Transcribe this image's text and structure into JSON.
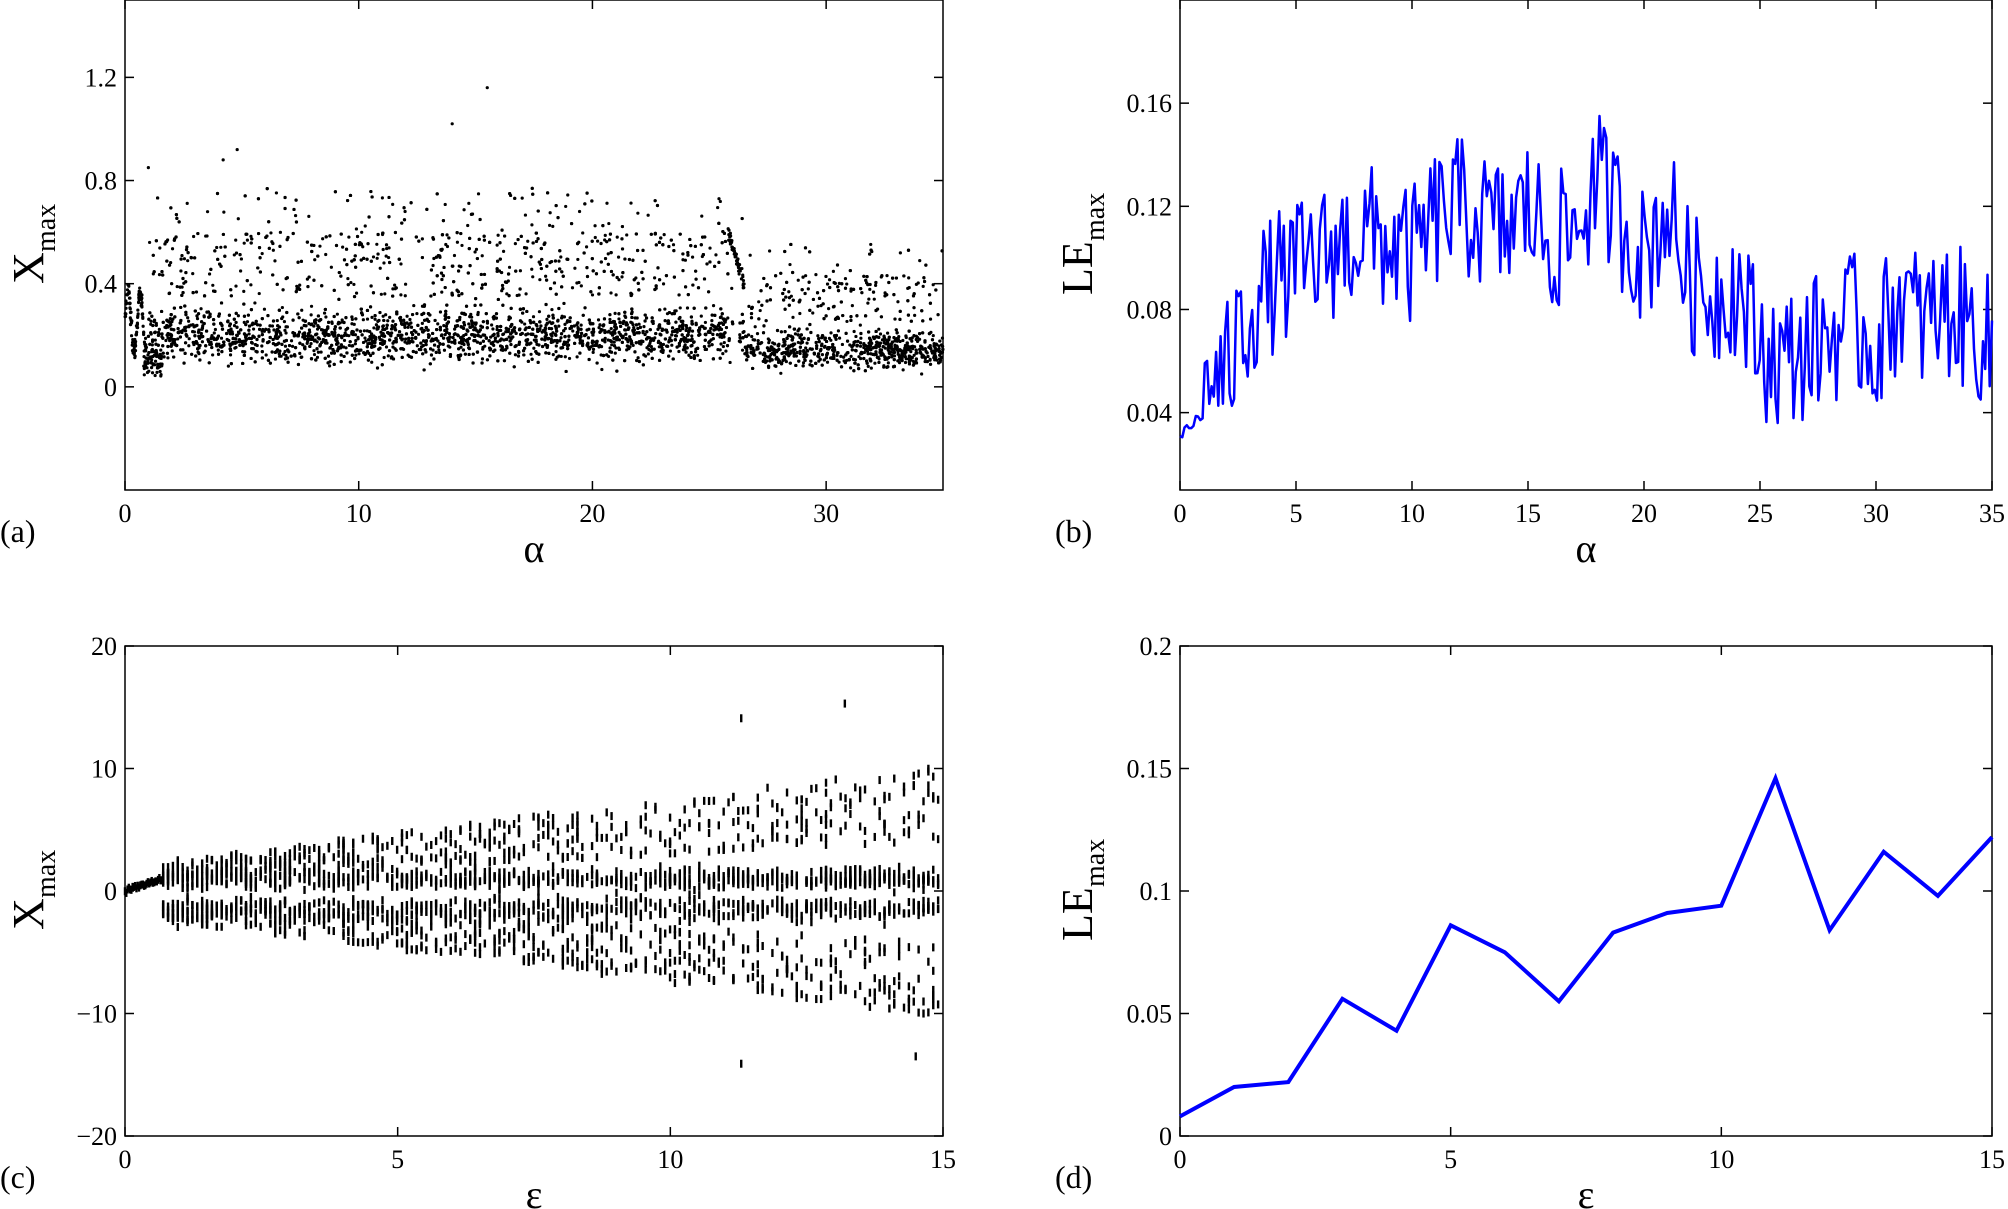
{
  "chart_data": [
    {
      "id": "a",
      "type": "scatter",
      "panel_label": "(a)",
      "xlabel": "α",
      "ylabel": "X",
      "ylabel_sub": "max",
      "xlim": [
        0,
        35
      ],
      "ylim": [
        -0.4,
        1.5
      ],
      "xticks": [
        "0",
        "10",
        "20",
        "30"
      ],
      "yticks": [
        "0",
        "0.4",
        "0.8",
        "1.2"
      ],
      "grid": false,
      "color": "#000000",
      "outliers": [
        {
          "x": 15.5,
          "y": 1.16
        },
        {
          "x": 14.0,
          "y": 1.02
        },
        {
          "x": 4.8,
          "y": 0.92
        },
        {
          "x": 4.2,
          "y": 0.88
        },
        {
          "x": 1.0,
          "y": 0.85
        }
      ]
    },
    {
      "id": "b",
      "type": "line",
      "panel_label": "(b)",
      "xlabel": "α",
      "ylabel": "LE",
      "ylabel_sub": "max",
      "xlim": [
        0,
        35
      ],
      "ylim": [
        0.01,
        0.2
      ],
      "xticks": [
        "0",
        "5",
        "10",
        "15",
        "20",
        "25",
        "30",
        "35"
      ],
      "yticks": [
        "0.04",
        "0.08",
        "0.12",
        "0.16"
      ],
      "grid": false,
      "color": "#0000ff",
      "x": [
        0,
        1,
        2,
        3,
        4,
        5,
        6,
        7,
        8,
        9,
        10,
        11,
        12,
        13,
        14,
        15,
        16,
        17,
        18,
        19,
        20,
        21,
        22,
        23,
        24,
        25,
        26,
        27,
        28,
        29,
        30,
        31,
        32,
        33,
        34,
        35
      ],
      "y": [
        0.032,
        0.05,
        0.055,
        0.08,
        0.09,
        0.095,
        0.1,
        0.105,
        0.11,
        0.105,
        0.1,
        0.115,
        0.12,
        0.115,
        0.11,
        0.12,
        0.105,
        0.11,
        0.13,
        0.115,
        0.1,
        0.12,
        0.09,
        0.085,
        0.09,
        0.065,
        0.06,
        0.065,
        0.07,
        0.075,
        0.065,
        0.085,
        0.075,
        0.08,
        0.075,
        0.065
      ]
    },
    {
      "id": "c",
      "type": "scatter",
      "panel_label": "(c)",
      "xlabel": "ε",
      "ylabel": "X",
      "ylabel_sub": "max",
      "xlim": [
        0,
        15
      ],
      "ylim": [
        -20,
        20
      ],
      "xticks": [
        "0",
        "5",
        "10",
        "15"
      ],
      "yticks": [
        "−20",
        "−10",
        "0",
        "10",
        "20"
      ],
      "grid": false,
      "color": "#000000"
    },
    {
      "id": "d",
      "type": "line",
      "panel_label": "(d)",
      "xlabel": "ε",
      "ylabel": "LE",
      "ylabel_sub": "max",
      "xlim": [
        0,
        15
      ],
      "ylim": [
        0,
        0.2
      ],
      "xticks": [
        "0",
        "5",
        "10",
        "15"
      ],
      "yticks": [
        "0",
        "0.05",
        "0.1",
        "0.15",
        "0.2"
      ],
      "grid": false,
      "color": "#0000ff",
      "x": [
        0,
        1,
        2,
        3,
        4,
        5,
        6,
        7,
        8,
        9,
        10,
        11,
        12,
        13,
        14,
        15
      ],
      "y": [
        0.008,
        0.02,
        0.022,
        0.056,
        0.043,
        0.086,
        0.075,
        0.055,
        0.083,
        0.091,
        0.094,
        0.146,
        0.084,
        0.116,
        0.098,
        0.122
      ]
    }
  ]
}
